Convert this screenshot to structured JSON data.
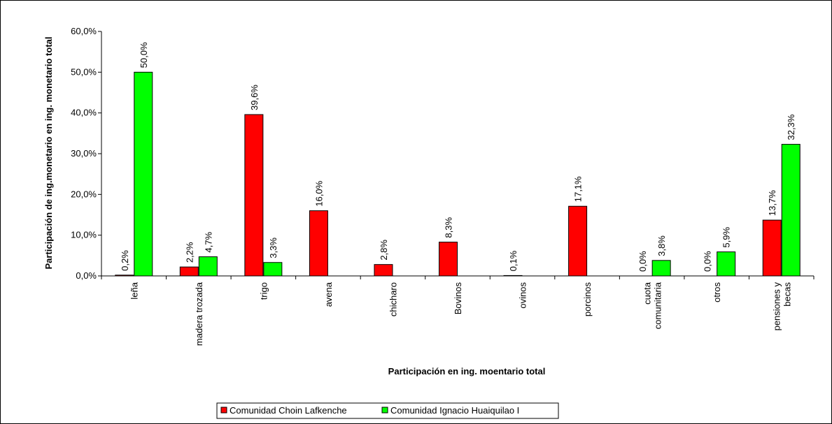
{
  "chart_data": {
    "type": "bar",
    "title": "",
    "xlabel": "Participación en ing. moentario total",
    "ylabel": "Participación de ing.monetario en ing. monetario total",
    "ylim": [
      0,
      60
    ],
    "yticks": [
      "0,0%",
      "10,0%",
      "20,0%",
      "30,0%",
      "40,0%",
      "50,0%",
      "60,0%"
    ],
    "grid": false,
    "legend_position": "bottom",
    "categories": [
      [
        "leña"
      ],
      [
        "madera trozada"
      ],
      [
        "trigo"
      ],
      [
        "avena"
      ],
      [
        "chicharo"
      ],
      [
        "Bovinos"
      ],
      [
        "ovinos"
      ],
      [
        "porcinos"
      ],
      [
        "cuota",
        "comunitaria"
      ],
      [
        "otros"
      ],
      [
        "pensiones y",
        "becas"
      ]
    ],
    "series": [
      {
        "name": "Comunidad Choin Lafkenche",
        "color": "#ff0000",
        "values": [
          0.2,
          2.2,
          39.6,
          16.0,
          2.8,
          8.3,
          0.1,
          17.1,
          0.0,
          0.0,
          13.7
        ],
        "labels": [
          "0,2%",
          "2,2%",
          "39,6%",
          "16,0%",
          "2,8%",
          "8,3%",
          "0,1%",
          "17,1%",
          "0,0%",
          "0,0%",
          "13,7%"
        ]
      },
      {
        "name": "Comunidad Ignacio Huaiquilao I",
        "color": "#00ff00",
        "values": [
          50.0,
          4.7,
          3.3,
          null,
          null,
          null,
          null,
          null,
          3.8,
          5.9,
          32.3
        ],
        "labels": [
          "50,0%",
          "4,7%",
          "3,3%",
          null,
          null,
          null,
          null,
          null,
          "3,8%",
          "5,9%",
          "32,3%"
        ]
      }
    ]
  }
}
